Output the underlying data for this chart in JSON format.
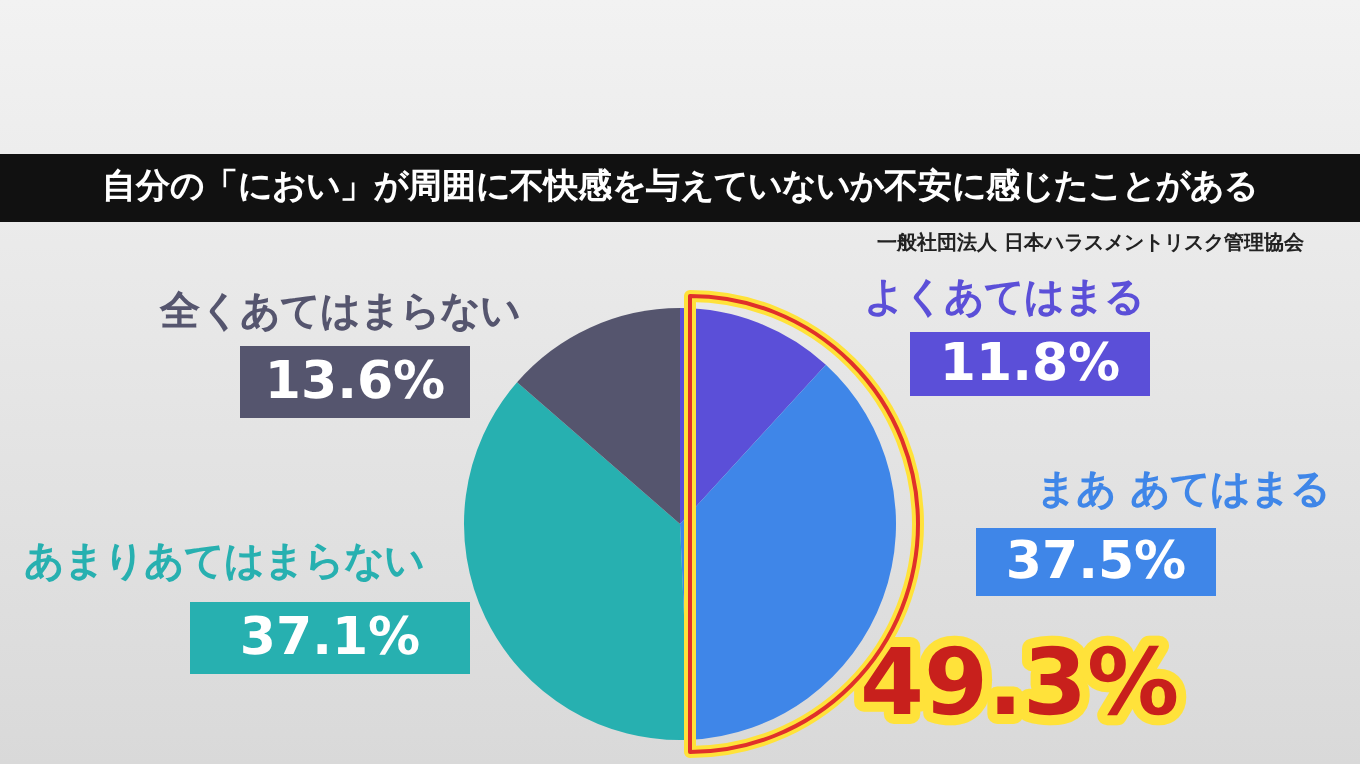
{
  "chart_data": {
    "type": "pie",
    "title": "自分の「におい」が周囲に不快感を与えていないか不安に感じたことがある",
    "categories": [
      "よくあてはまる",
      "まあ あてはまる",
      "あまりあてはまらない",
      "全くあてはまらない"
    ],
    "values": [
      11.8,
      37.5,
      37.1,
      13.6
    ],
    "colors": [
      "#5b4fd8",
      "#3f86e8",
      "#27b0b0",
      "#55556e"
    ],
    "value_labels": [
      "11.8%",
      "37.5%",
      "37.1%",
      "13.6%"
    ],
    "annotations": [
      "一般社団法人 日本ハラスメントリスク管理協会",
      "49.3%"
    ]
  }
}
